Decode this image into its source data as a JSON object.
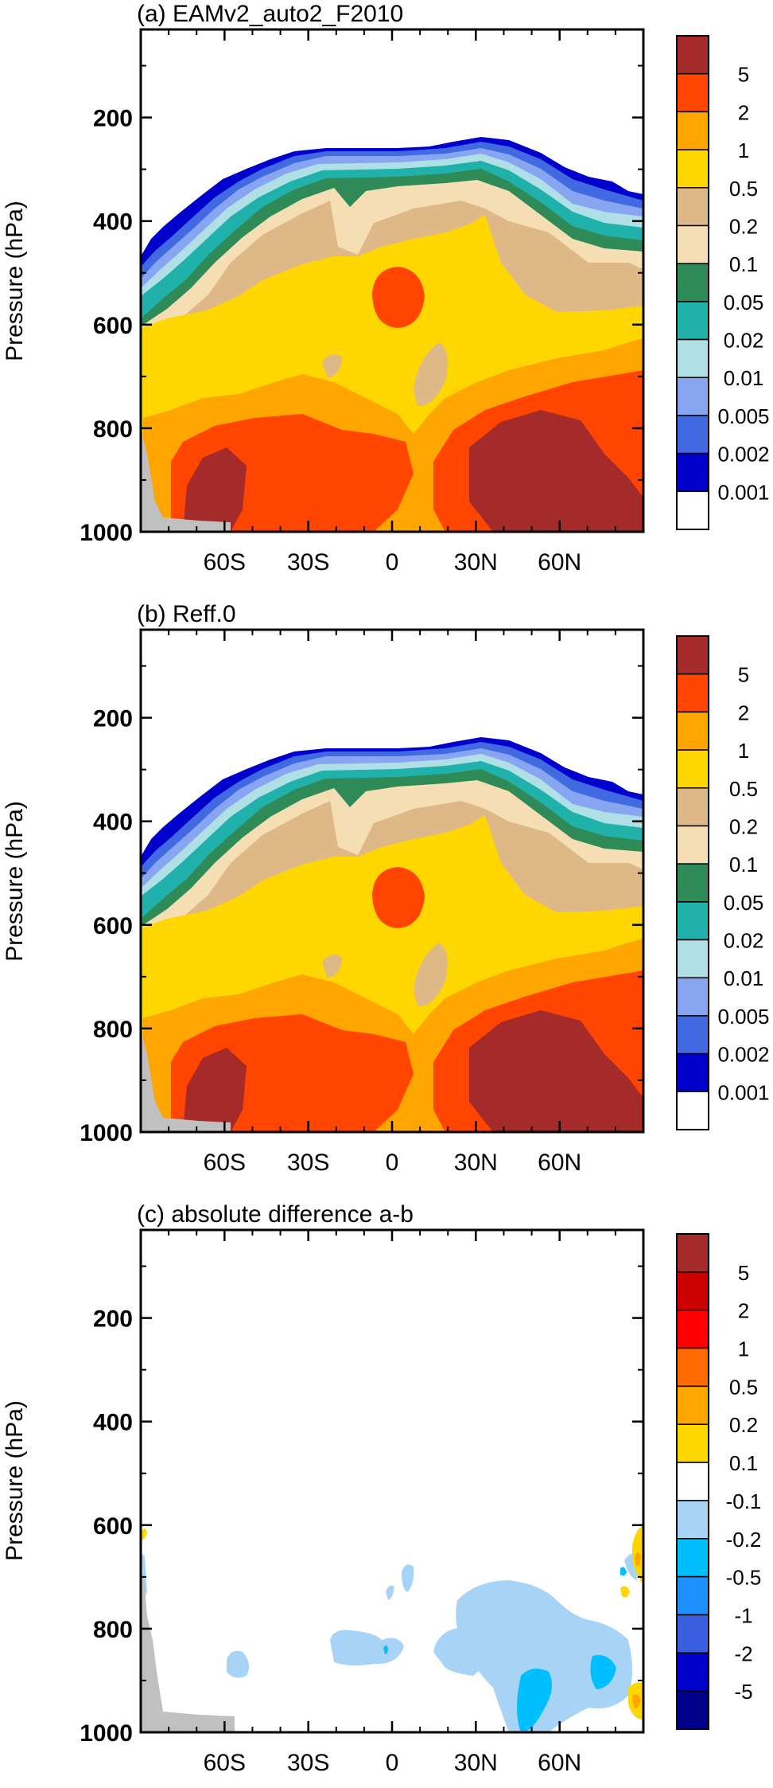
{
  "figure": {
    "description_free": true
  },
  "chart_data": [
    {
      "type": "heatmap",
      "title": "(a) EAMv2_auto2_F2010",
      "ylabel": "Pressure (hPa)",
      "x_ticks": [
        "60S",
        "30S",
        "0",
        "30N",
        "60N"
      ],
      "x_tick_values": [
        -60,
        -30,
        0,
        30,
        60
      ],
      "xlim": [
        -90,
        90
      ],
      "y_ticks": [
        "200",
        "400",
        "600",
        "800",
        "1000"
      ],
      "y_tick_values": [
        200,
        400,
        600,
        800,
        1000
      ],
      "ylim": [
        1000,
        30
      ],
      "colorbar": {
        "labels": [
          "5",
          "2",
          "1",
          "0.5",
          "0.2",
          "0.1",
          "0.05",
          "0.02",
          "0.01",
          "0.005",
          "0.002",
          "0.001"
        ],
        "colors": [
          "#a52a2a",
          "#ff4500",
          "#ffa500",
          "#ffd700",
          "#deb887",
          "#f5deb3",
          "#2e8b57",
          "#20b2aa",
          "#b0e0e6",
          "#87a5f0",
          "#4169e1",
          "#0000cd",
          "#ffffff"
        ]
      }
    },
    {
      "type": "heatmap",
      "title": "(b) Reff.0",
      "ylabel": "Pressure (hPa)",
      "x_ticks": [
        "60S",
        "30S",
        "0",
        "30N",
        "60N"
      ],
      "x_tick_values": [
        -60,
        -30,
        0,
        30,
        60
      ],
      "xlim": [
        -90,
        90
      ],
      "y_ticks": [
        "200",
        "400",
        "600",
        "800",
        "1000"
      ],
      "y_tick_values": [
        200,
        400,
        600,
        800,
        1000
      ],
      "ylim": [
        1000,
        30
      ],
      "colorbar": {
        "labels": [
          "5",
          "2",
          "1",
          "0.5",
          "0.2",
          "0.1",
          "0.05",
          "0.02",
          "0.01",
          "0.005",
          "0.002",
          "0.001"
        ],
        "colors": [
          "#a52a2a",
          "#ff4500",
          "#ffa500",
          "#ffd700",
          "#deb887",
          "#f5deb3",
          "#2e8b57",
          "#20b2aa",
          "#b0e0e6",
          "#87a5f0",
          "#4169e1",
          "#0000cd",
          "#ffffff"
        ]
      }
    },
    {
      "type": "heatmap",
      "title": "(c) absolute difference a-b",
      "ylabel": "Pressure (hPa)",
      "x_ticks": [
        "60S",
        "30S",
        "0",
        "30N",
        "60N"
      ],
      "x_tick_values": [
        -60,
        -30,
        0,
        30,
        60
      ],
      "xlim": [
        -90,
        90
      ],
      "y_ticks": [
        "200",
        "400",
        "600",
        "800",
        "1000"
      ],
      "y_tick_values": [
        200,
        400,
        600,
        800,
        1000
      ],
      "ylim": [
        1000,
        30
      ],
      "colorbar": {
        "labels": [
          "5",
          "2",
          "1",
          "0.5",
          "0.2",
          "0.1",
          "-0.1",
          "-0.2",
          "-0.5",
          "-1",
          "-2",
          "-5"
        ],
        "colors": [
          "#a52a2a",
          "#cd0000",
          "#ff0000",
          "#ff6a00",
          "#ffa500",
          "#ffd700",
          "#ffffff",
          "#a7d3f7",
          "#00bfff",
          "#1e90ff",
          "#3a5fe0",
          "#0000cd",
          "#00008b"
        ]
      }
    }
  ]
}
